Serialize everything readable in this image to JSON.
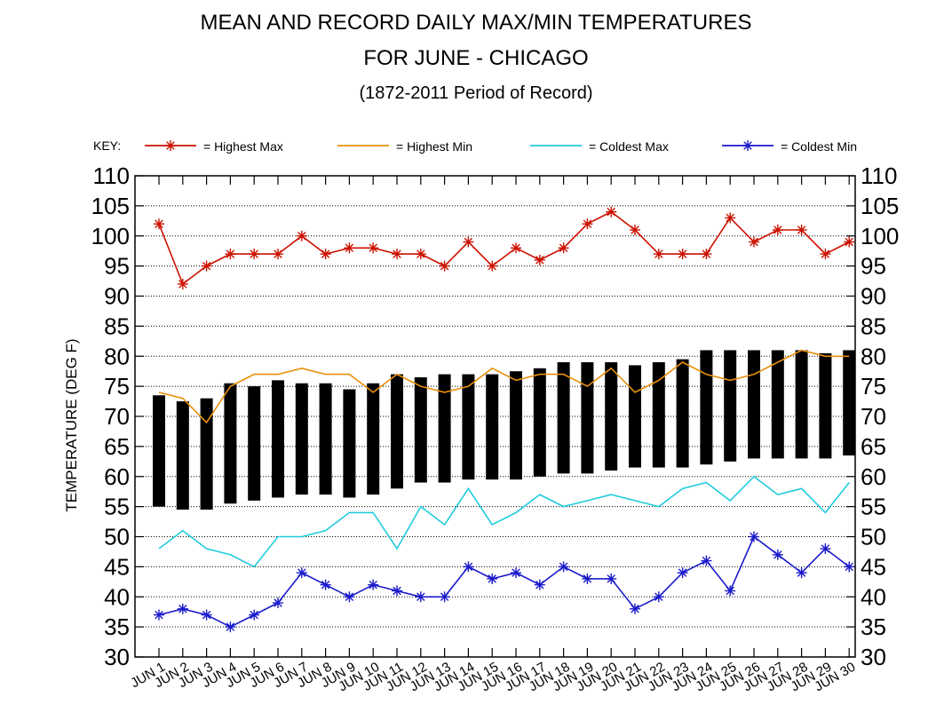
{
  "chart_data": {
    "type": "line",
    "title": "MEAN AND RECORD DAILY MAX/MIN TEMPERATURES",
    "subtitle": "FOR JUNE - CHICAGO",
    "period": "(1872-2011 Period of Record)",
    "ylabel": "TEMPERATURE (DEG F)",
    "xlabel": "",
    "ylim": [
      30,
      110
    ],
    "yticks": [
      30,
      35,
      40,
      45,
      50,
      55,
      60,
      65,
      70,
      75,
      80,
      85,
      90,
      95,
      100,
      105,
      110
    ],
    "grid": true,
    "legend_placement": "top",
    "key_label": "KEY:",
    "categories": [
      "JUN 1",
      "JUN 2",
      "JUN 3",
      "JUN 4",
      "JUN 5",
      "JUN 6",
      "JUN 7",
      "JUN 8",
      "JUN 9",
      "JUN 10",
      "JUN 11",
      "JUN 12",
      "JUN 13",
      "JUN 14",
      "JUN 15",
      "JUN 16",
      "JUN 17",
      "JUN 18",
      "JUN 19",
      "JUN 20",
      "JUN 21",
      "JUN 22",
      "JUN 23",
      "JUN 24",
      "JUN 25",
      "JUN 26",
      "JUN 27",
      "JUN 28",
      "JUN 29",
      "JUN 30"
    ],
    "mean_range": {
      "color": "#000000",
      "low": [
        55,
        54.5,
        54.5,
        55.5,
        56,
        56.5,
        57,
        57,
        56.5,
        57,
        58,
        59,
        59,
        59.5,
        59.5,
        59.5,
        60,
        60.5,
        60.5,
        61,
        61.5,
        61.5,
        61.5,
        62,
        62.5,
        63,
        63,
        63,
        63,
        63.5
      ],
      "high": [
        73.5,
        72.5,
        73,
        75.5,
        75,
        76,
        75.5,
        75.5,
        74.5,
        75.5,
        77,
        76.5,
        77,
        77,
        77,
        77.5,
        78,
        79,
        79,
        79,
        78.5,
        79,
        79.5,
        81,
        81,
        81,
        81,
        81,
        80.5,
        81
      ]
    },
    "series": [
      {
        "name": "= Highest Max",
        "color": "#cc1100",
        "marker": "asterisk",
        "values": [
          102,
          92,
          95,
          97,
          97,
          97,
          100,
          97,
          98,
          98,
          97,
          97,
          95,
          99,
          95,
          98,
          96,
          98,
          102,
          104,
          101,
          97,
          97,
          97,
          103,
          99,
          101,
          101,
          97,
          99
        ]
      },
      {
        "name": "= Highest Min",
        "color": "#e8900c",
        "marker": "none",
        "values": [
          74,
          73,
          69,
          75,
          77,
          77,
          78,
          77,
          77,
          74,
          77,
          75,
          74,
          75,
          78,
          76,
          77,
          77,
          75,
          78,
          74,
          76,
          79,
          77,
          76,
          77,
          79,
          81,
          80,
          80
        ]
      },
      {
        "name": "= Coldest Max",
        "color": "#22ccdd",
        "marker": "none",
        "values": [
          48,
          51,
          48,
          47,
          45,
          50,
          50,
          51,
          54,
          54,
          48,
          55,
          52,
          58,
          52,
          54,
          57,
          55,
          56,
          57,
          56,
          55,
          58,
          59,
          56,
          60,
          57,
          58,
          54,
          59
        ]
      },
      {
        "name": "= Coldest Min",
        "color": "#1a1acc",
        "marker": "asterisk",
        "values": [
          37,
          38,
          37,
          35,
          37,
          39,
          44,
          42,
          40,
          42,
          41,
          40,
          40,
          45,
          43,
          44,
          42,
          45,
          43,
          43,
          38,
          40,
          44,
          46,
          41,
          50,
          47,
          44,
          48,
          45
        ]
      }
    ]
  }
}
